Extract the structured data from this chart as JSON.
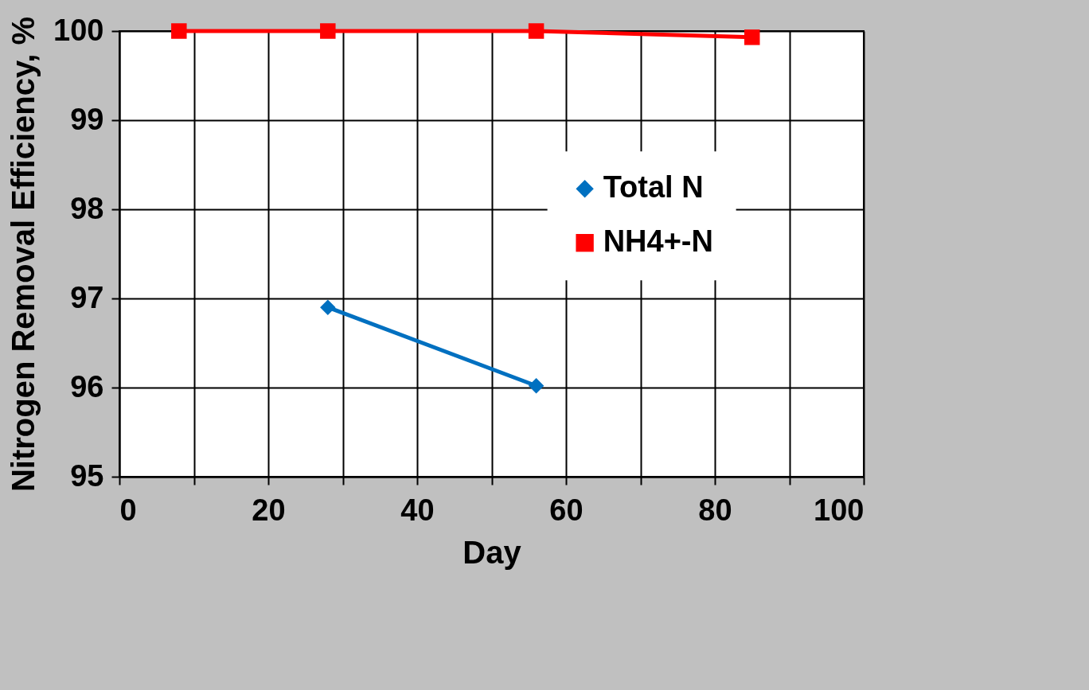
{
  "chart_data": {
    "type": "line",
    "xlabel": "Day",
    "ylabel": "Nitrogen Removal Efficiency, %",
    "xlim": [
      0,
      100
    ],
    "xticks": [
      0,
      {
        "value": 10,
        "label": null
      },
      20,
      {
        "value": 30,
        "label": null
      },
      40,
      {
        "value": 50,
        "label": null
      },
      60,
      {
        "value": 70,
        "label": null
      },
      80,
      {
        "value": 90,
        "label": null
      },
      100
    ],
    "ylim": [
      95,
      100
    ],
    "yticks": [
      95,
      96,
      97,
      98,
      99,
      100
    ],
    "grid": true,
    "legend": "right",
    "series": [
      {
        "name": "Total N",
        "color": "#0070c0",
        "marker": "diamond",
        "x": [
          28,
          56
        ],
        "values": [
          96.9,
          96.02
        ]
      },
      {
        "name": "NH4+-N",
        "color": "#ff0000",
        "marker": "square",
        "x": [
          8,
          28,
          56,
          85
        ],
        "values": [
          100,
          100,
          100,
          99.93
        ]
      }
    ]
  }
}
